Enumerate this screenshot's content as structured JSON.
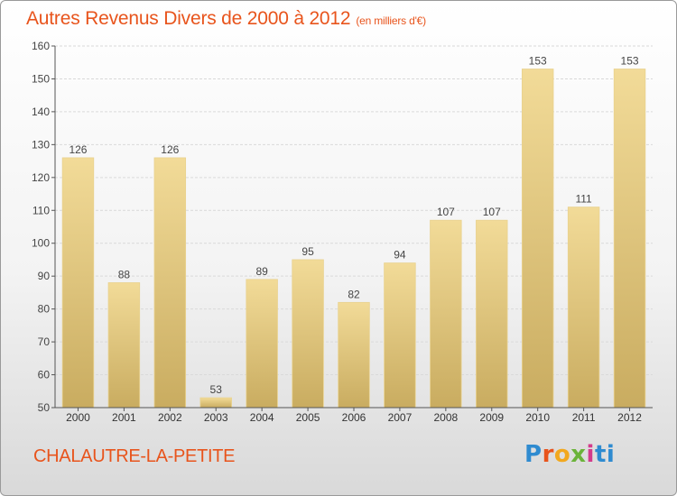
{
  "title": "Autres Revenus Divers de 2000 à 2012",
  "title_unit": "(en milliers d'€)",
  "town": "CHALAUTRE-LA-PETITE",
  "logo": [
    "P",
    "r",
    "o",
    "x",
    "i",
    "ti"
  ],
  "colors": {
    "accent": "#e8541c",
    "bar_light": "#f2db98",
    "bar_dark": "#c9ac60",
    "grid": "#d9d9d9"
  },
  "chart_data": {
    "type": "bar",
    "title": "Autres Revenus Divers de 2000 à 2012",
    "xlabel": "",
    "ylabel": "",
    "categories": [
      "2000",
      "2001",
      "2002",
      "2003",
      "2004",
      "2005",
      "2006",
      "2007",
      "2008",
      "2009",
      "2010",
      "2011",
      "2012"
    ],
    "values": [
      126,
      88,
      126,
      53,
      89,
      95,
      82,
      94,
      107,
      107,
      153,
      111,
      153
    ],
    "ylim": [
      50,
      160
    ],
    "yticks": [
      50,
      60,
      70,
      80,
      90,
      100,
      110,
      120,
      130,
      140,
      150,
      160
    ],
    "grid": true,
    "legend": "none"
  }
}
